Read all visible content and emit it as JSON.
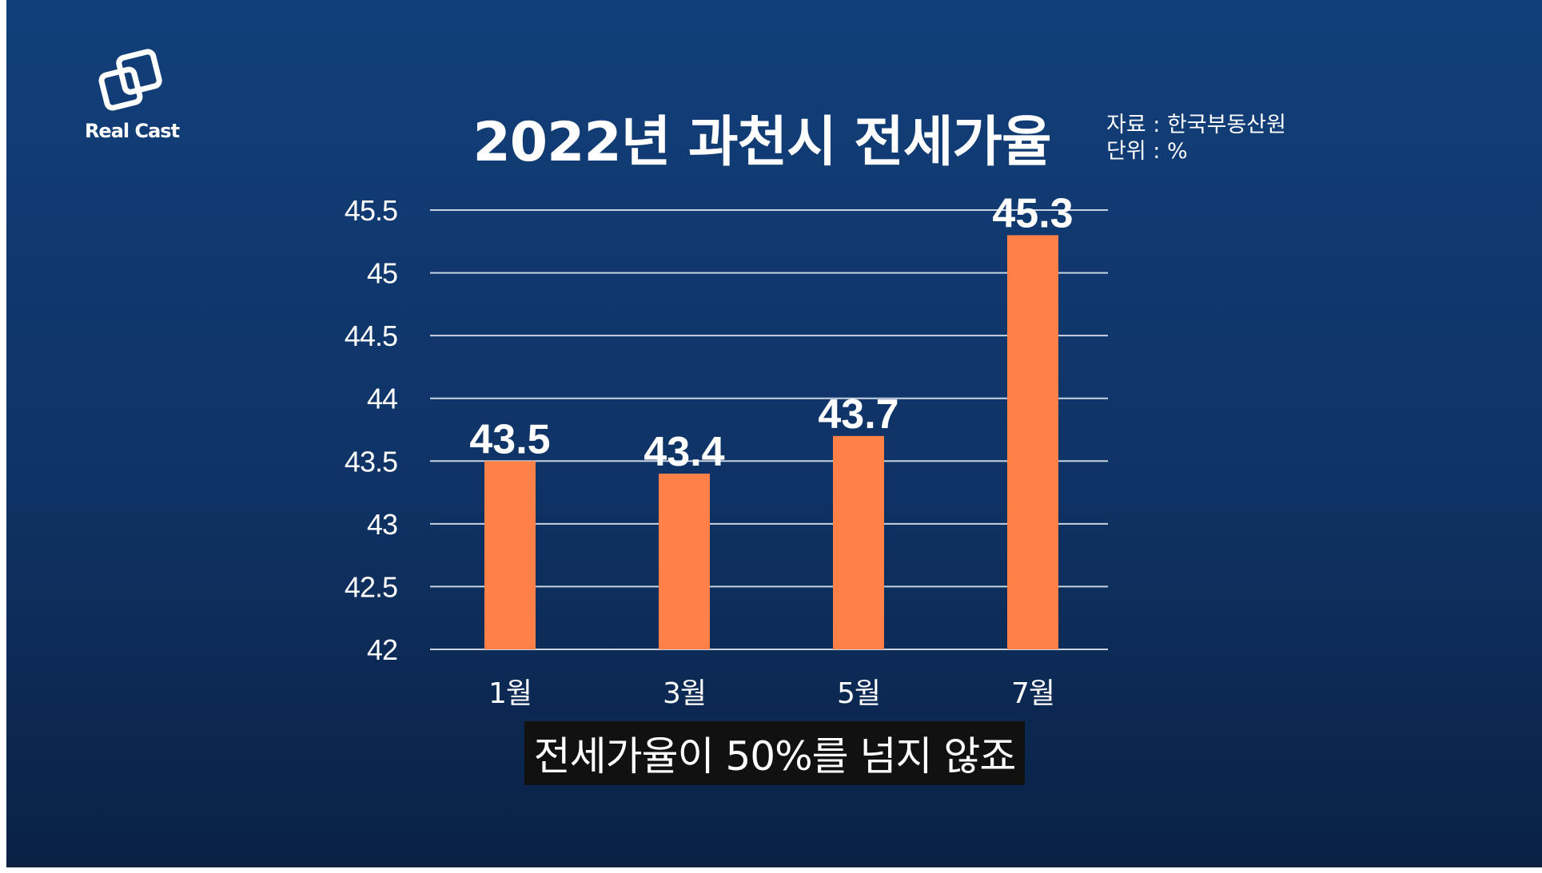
{
  "logo": {
    "text": "Real Cast"
  },
  "meta": {
    "source": "자료 : 한국부동산원",
    "unit": "단위 : %"
  },
  "subtitle": "전세가율이 50%를 넘지 않죠",
  "colors": {
    "bar": "#ff8147",
    "grid": "#c9d3e2",
    "background": "#113a72",
    "text": "#ffffff"
  },
  "chart_data": {
    "type": "bar",
    "title": "2022년 과천시 전세가율",
    "xlabel": "",
    "ylabel": "",
    "categories": [
      "1월",
      "3월",
      "5월",
      "7월"
    ],
    "values": [
      43.5,
      43.4,
      43.7,
      45.3
    ],
    "data_labels": [
      "43.5",
      "43.4",
      "43.7",
      "45.3"
    ],
    "ylim": [
      42,
      45.5
    ],
    "yticks": [
      42,
      42.5,
      43,
      43.5,
      44,
      44.5,
      45,
      45.5
    ],
    "ytick_labels": [
      "42",
      "42.5",
      "43",
      "43.5",
      "44",
      "44.5",
      "45",
      "45.5"
    ],
    "grid": true,
    "legend": "none"
  }
}
